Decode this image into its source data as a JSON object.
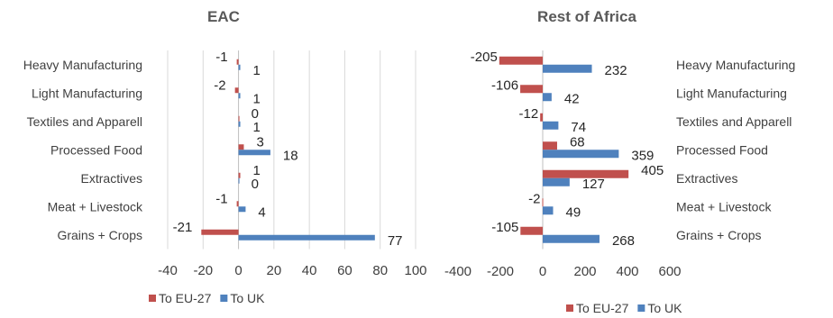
{
  "chart_data": [
    {
      "type": "bar",
      "orientation": "horizontal",
      "title": "EAC",
      "categories": [
        "Heavy Manufacturing",
        "Light Manufacturing",
        "Textiles and Apparell",
        "Processed Food",
        "Extractives",
        "Meat + Livestock",
        "Grains + Crops"
      ],
      "series": [
        {
          "name": "To EU-27",
          "values": [
            -1,
            -2,
            0,
            3,
            1,
            -1,
            -21
          ],
          "labels": [
            "-1",
            "-2",
            "0",
            "3",
            "1",
            "-1",
            "-21"
          ]
        },
        {
          "name": "To UK",
          "values": [
            1,
            1,
            1,
            18,
            0,
            4,
            77
          ],
          "labels": [
            "1",
            "1",
            "1",
            "18",
            "0",
            "4",
            "77"
          ]
        }
      ],
      "xlim": [
        -40,
        100
      ],
      "xticks": [
        -40,
        -20,
        0,
        20,
        40,
        60,
        80,
        100
      ],
      "category_labels_side": "left",
      "grid": true,
      "legend": "bottom"
    },
    {
      "type": "bar",
      "orientation": "horizontal",
      "title": "Rest of Africa",
      "categories": [
        "Heavy Manufacturing",
        "Light Manufacturing",
        "Textiles and Apparell",
        "Processed Food",
        "Extractives",
        "Meat + Livestock",
        "Grains + Crops"
      ],
      "series": [
        {
          "name": "To EU-27",
          "values": [
            -205,
            -106,
            -12,
            68,
            405,
            -2,
            -105
          ],
          "labels": [
            "-205",
            "-106",
            "-12",
            "68",
            "405",
            "-2",
            "-105"
          ]
        },
        {
          "name": "To UK",
          "values": [
            232,
            42,
            74,
            359,
            127,
            49,
            268
          ],
          "labels": [
            "232",
            "42",
            "74",
            "359",
            "127",
            "49",
            "268"
          ]
        }
      ],
      "xlim": [
        -400,
        600
      ],
      "xticks": [
        -400,
        -200,
        0,
        200,
        400,
        600
      ],
      "category_labels_side": "right",
      "grid": false,
      "legend": "bottom"
    }
  ],
  "colors": {
    "eu": "#c0504d",
    "uk": "#4f81bd"
  }
}
